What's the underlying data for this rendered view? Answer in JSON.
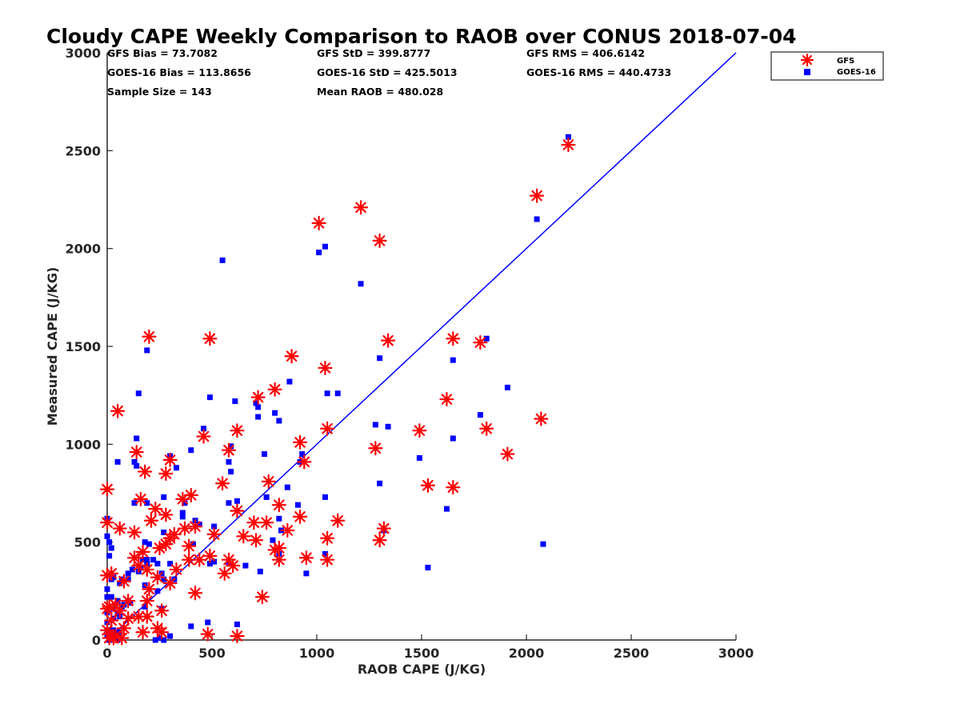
{
  "chart_data": {
    "type": "scatter",
    "title": "Cloudy CAPE Weekly Comparison to RAOB over CONUS 2018-07-04",
    "xlabel": "RAOB CAPE (J/KG)",
    "ylabel": "Measured CAPE (J/KG)",
    "xlim": [
      0,
      3000
    ],
    "ylim": [
      0,
      3000
    ],
    "xticks": [
      "0",
      "500",
      "1000",
      "1500",
      "2000",
      "2500",
      "3000"
    ],
    "yticks": [
      "0",
      "500",
      "1000",
      "1500",
      "2000",
      "2500",
      "3000"
    ],
    "grid": false,
    "legend_position": "top-right",
    "reference_line": {
      "x": [
        0,
        3000
      ],
      "y": [
        0,
        3000
      ],
      "color": "#0000ff"
    },
    "stats": [
      {
        "text": "GFS Bias = 73.7082"
      },
      {
        "text": "GFS StD = 399.8777"
      },
      {
        "text": "GFS RMS = 406.6142"
      },
      {
        "text": "GOES-16 Bias = 113.8656"
      },
      {
        "text": "GOES-16 StD = 425.5013"
      },
      {
        "text": "GOES-16 RMS = 440.4733"
      },
      {
        "text": "Sample Size = 143"
      },
      {
        "text": "Mean RAOB = 480.028"
      }
    ],
    "series": [
      {
        "name": "GFS",
        "marker": "asterisk",
        "color": "#ff0000",
        "points": [
          [
            2200,
            2530
          ],
          [
            2050,
            2270
          ],
          [
            1210,
            2210
          ],
          [
            1300,
            2040
          ],
          [
            1010,
            2130
          ],
          [
            200,
            1550
          ],
          [
            490,
            1540
          ],
          [
            1340,
            1530
          ],
          [
            1650,
            1540
          ],
          [
            1780,
            1520
          ],
          [
            880,
            1450
          ],
          [
            1040,
            1390
          ],
          [
            800,
            1280
          ],
          [
            720,
            1240
          ],
          [
            1620,
            1230
          ],
          [
            50,
            1170
          ],
          [
            2070,
            1130
          ],
          [
            1810,
            1080
          ],
          [
            1050,
            1080
          ],
          [
            1490,
            1070
          ],
          [
            620,
            1070
          ],
          [
            460,
            1040
          ],
          [
            920,
            1010
          ],
          [
            1280,
            980
          ],
          [
            580,
            970
          ],
          [
            140,
            960
          ],
          [
            1910,
            950
          ],
          [
            300,
            920
          ],
          [
            940,
            910
          ],
          [
            180,
            860
          ],
          [
            280,
            850
          ],
          [
            550,
            800
          ],
          [
            770,
            810
          ],
          [
            1530,
            790
          ],
          [
            1650,
            780
          ],
          [
            0,
            770
          ],
          [
            400,
            740
          ],
          [
            360,
            720
          ],
          [
            160,
            720
          ],
          [
            230,
            670
          ],
          [
            820,
            690
          ],
          [
            620,
            660
          ],
          [
            280,
            640
          ],
          [
            1100,
            610
          ],
          [
            920,
            630
          ],
          [
            760,
            600
          ],
          [
            700,
            600
          ],
          [
            210,
            610
          ],
          [
            0,
            600
          ],
          [
            60,
            570
          ],
          [
            370,
            570
          ],
          [
            130,
            550
          ],
          [
            1320,
            570
          ],
          [
            860,
            560
          ],
          [
            420,
            580
          ],
          [
            320,
            540
          ],
          [
            510,
            540
          ],
          [
            650,
            530
          ],
          [
            1050,
            520
          ],
          [
            300,
            520
          ],
          [
            710,
            510
          ],
          [
            280,
            490
          ],
          [
            1300,
            510
          ],
          [
            250,
            470
          ],
          [
            170,
            450
          ],
          [
            820,
            470
          ],
          [
            390,
            480
          ],
          [
            800,
            460
          ],
          [
            130,
            420
          ],
          [
            490,
            430
          ],
          [
            580,
            410
          ],
          [
            1050,
            410
          ],
          [
            950,
            420
          ],
          [
            820,
            410
          ],
          [
            390,
            410
          ],
          [
            440,
            410
          ],
          [
            330,
            360
          ],
          [
            150,
            380
          ],
          [
            190,
            360
          ],
          [
            560,
            340
          ],
          [
            600,
            380
          ],
          [
            240,
            320
          ],
          [
            20,
            340
          ],
          [
            0,
            330
          ],
          [
            80,
            300
          ],
          [
            300,
            290
          ],
          [
            200,
            260
          ],
          [
            420,
            240
          ],
          [
            740,
            220
          ],
          [
            190,
            200
          ],
          [
            100,
            200
          ],
          [
            10,
            170
          ],
          [
            40,
            180
          ],
          [
            0,
            160
          ],
          [
            60,
            150
          ],
          [
            260,
            150
          ],
          [
            190,
            120
          ],
          [
            150,
            120
          ],
          [
            100,
            110
          ],
          [
            20,
            100
          ],
          [
            80,
            60
          ],
          [
            240,
            60
          ],
          [
            0,
            50
          ],
          [
            170,
            40
          ],
          [
            260,
            40
          ],
          [
            480,
            30
          ],
          [
            620,
            20
          ],
          [
            40,
            20
          ],
          [
            10,
            10
          ],
          [
            30,
            10
          ],
          [
            70,
            10
          ]
        ]
      },
      {
        "name": "GOES-16",
        "marker": "square",
        "color": "#0000ff",
        "points": [
          [
            2200,
            2570
          ],
          [
            2050,
            2150
          ],
          [
            1040,
            2010
          ],
          [
            1010,
            1980
          ],
          [
            550,
            1940
          ],
          [
            1210,
            1820
          ],
          [
            1810,
            1540
          ],
          [
            190,
            1480
          ],
          [
            1300,
            1440
          ],
          [
            1650,
            1430
          ],
          [
            870,
            1320
          ],
          [
            1910,
            1290
          ],
          [
            150,
            1260
          ],
          [
            1050,
            1260
          ],
          [
            1100,
            1260
          ],
          [
            490,
            1240
          ],
          [
            610,
            1220
          ],
          [
            710,
            1210
          ],
          [
            720,
            1190
          ],
          [
            800,
            1160
          ],
          [
            1780,
            1150
          ],
          [
            720,
            1140
          ],
          [
            820,
            1120
          ],
          [
            1280,
            1100
          ],
          [
            1340,
            1090
          ],
          [
            460,
            1080
          ],
          [
            140,
            1030
          ],
          [
            1650,
            1030
          ],
          [
            590,
            990
          ],
          [
            400,
            970
          ],
          [
            750,
            950
          ],
          [
            930,
            950
          ],
          [
            300,
            940
          ],
          [
            1490,
            930
          ],
          [
            580,
            910
          ],
          [
            50,
            910
          ],
          [
            920,
            910
          ],
          [
            130,
            910
          ],
          [
            140,
            890
          ],
          [
            330,
            880
          ],
          [
            590,
            860
          ],
          [
            1300,
            800
          ],
          [
            860,
            780
          ],
          [
            760,
            730
          ],
          [
            1040,
            730
          ],
          [
            270,
            730
          ],
          [
            130,
            700
          ],
          [
            190,
            700
          ],
          [
            370,
            700
          ],
          [
            620,
            710
          ],
          [
            580,
            700
          ],
          [
            910,
            690
          ],
          [
            1620,
            670
          ],
          [
            360,
            650
          ],
          [
            360,
            630
          ],
          [
            820,
            620
          ],
          [
            0,
            620
          ],
          [
            420,
            610
          ],
          [
            440,
            590
          ],
          [
            510,
            580
          ],
          [
            830,
            560
          ],
          [
            270,
            550
          ],
          [
            1320,
            560
          ],
          [
            0,
            530
          ],
          [
            10,
            500
          ],
          [
            180,
            500
          ],
          [
            200,
            490
          ],
          [
            410,
            490
          ],
          [
            790,
            510
          ],
          [
            2080,
            490
          ],
          [
            20,
            470
          ],
          [
            10,
            430
          ],
          [
            170,
            410
          ],
          [
            820,
            440
          ],
          [
            1040,
            440
          ],
          [
            240,
            390
          ],
          [
            300,
            390
          ],
          [
            190,
            390
          ],
          [
            580,
            390
          ],
          [
            190,
            410
          ],
          [
            220,
            410
          ],
          [
            510,
            400
          ],
          [
            490,
            390
          ],
          [
            660,
            380
          ],
          [
            1530,
            370
          ],
          [
            120,
            360
          ],
          [
            160,
            370
          ],
          [
            150,
            350
          ],
          [
            950,
            340
          ],
          [
            100,
            340
          ],
          [
            260,
            340
          ],
          [
            730,
            350
          ],
          [
            30,
            320
          ],
          [
            20,
            310
          ],
          [
            70,
            310
          ],
          [
            100,
            310
          ],
          [
            320,
            310
          ],
          [
            60,
            290
          ],
          [
            270,
            310
          ],
          [
            180,
            280
          ],
          [
            0,
            260
          ],
          [
            240,
            250
          ],
          [
            0,
            220
          ],
          [
            20,
            220
          ],
          [
            50,
            200
          ],
          [
            100,
            200
          ],
          [
            110,
            190
          ],
          [
            80,
            180
          ],
          [
            70,
            170
          ],
          [
            180,
            170
          ],
          [
            260,
            160
          ],
          [
            30,
            160
          ],
          [
            0,
            140
          ],
          [
            50,
            140
          ],
          [
            60,
            120
          ],
          [
            30,
            110
          ],
          [
            0,
            90
          ],
          [
            480,
            90
          ],
          [
            400,
            70
          ],
          [
            620,
            80
          ],
          [
            0,
            50
          ],
          [
            10,
            50
          ],
          [
            30,
            50
          ],
          [
            40,
            40
          ],
          [
            60,
            40
          ],
          [
            30,
            20
          ],
          [
            0,
            20
          ],
          [
            300,
            20
          ],
          [
            20,
            10
          ],
          [
            250,
            10
          ],
          [
            230,
            0
          ],
          [
            270,
            0
          ],
          [
            10,
            0
          ],
          [
            50,
            0
          ]
        ]
      }
    ]
  }
}
